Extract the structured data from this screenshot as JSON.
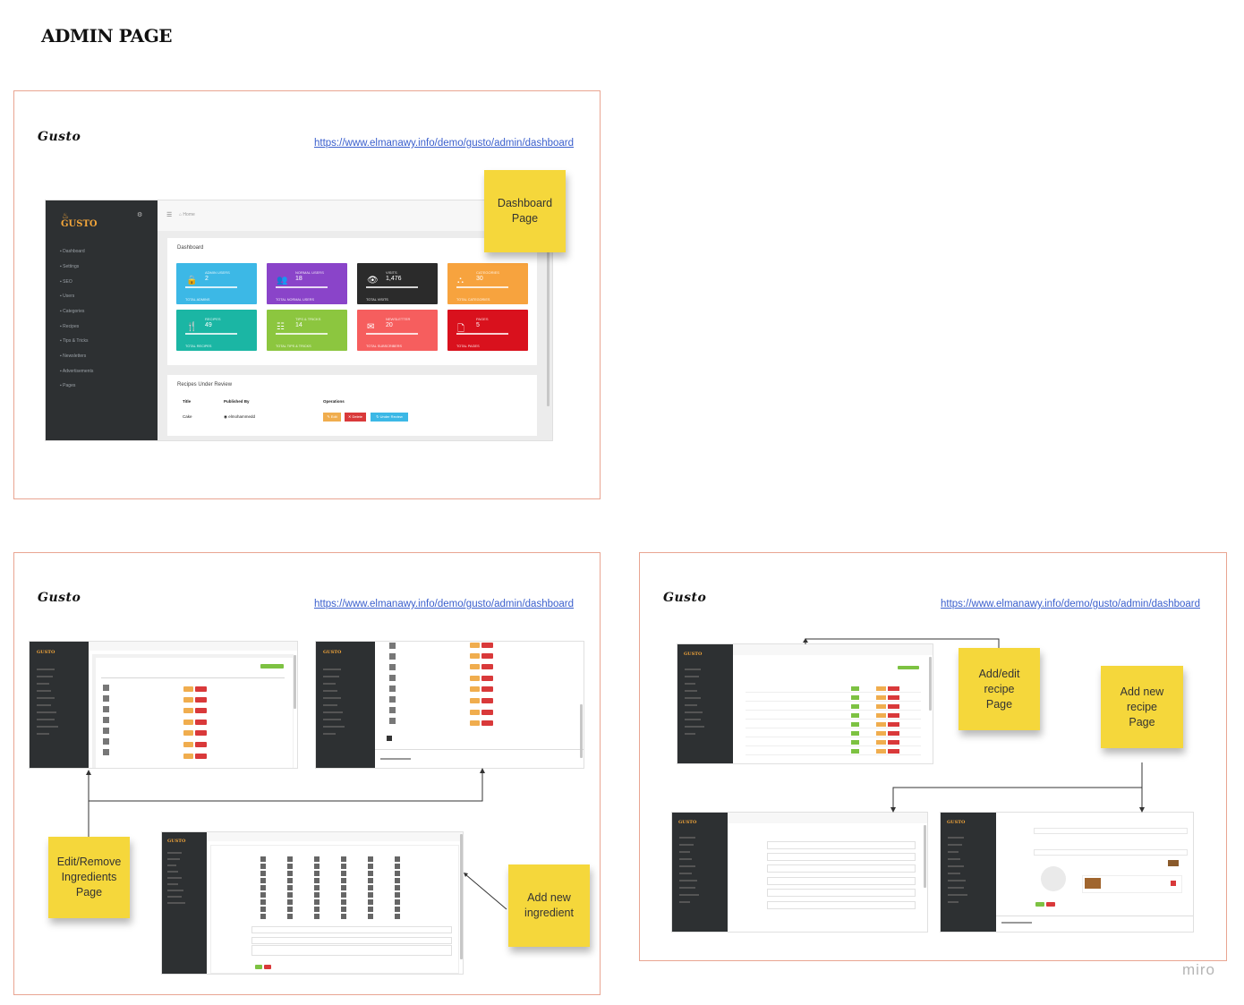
{
  "board": {
    "title": "ADMIN PAGE",
    "watermark": "miro"
  },
  "frames": [
    {
      "brand": "Gusto",
      "url": "https://www.elmanawy.info/demo/gusto/admin/dashboard"
    },
    {
      "brand": "Gusto",
      "url": "https://www.elmanawy.info/demo/gusto/admin/dashboard"
    },
    {
      "brand": "Gusto",
      "url": "https://www.elmanawy.info/demo/gusto/admin/dashboard"
    }
  ],
  "stickies": {
    "dashboard": "Dashboard\nPage",
    "edit_ingredients": "Edit/Remove\nIngredients\nPage",
    "add_ingredient": "Add new\ningredient",
    "add_edit_recipe": "Add/edit\nrecipe\nPage",
    "add_new_recipe": "Add new\nrecipe\nPage"
  },
  "dashboard": {
    "logo": "GUSTO",
    "breadcrumb": "Home",
    "panel_title": "Dashboard",
    "menu": [
      "Dashboard",
      "Settings",
      "SEO",
      "Users",
      "Categories",
      "Recipes",
      "Tips & Tricks",
      "Newsletters",
      "Advertisements",
      "Pages"
    ],
    "cards": [
      {
        "label": "ADMIN USERS",
        "value": "2",
        "foot": "TOTAL ADMINS",
        "color": "#3cb8e6",
        "icon": "lock-icon"
      },
      {
        "label": "NORMAL USERS",
        "value": "18",
        "foot": "TOTAL NORMAL USERS",
        "color": "#8a44c9",
        "icon": "users-icon"
      },
      {
        "label": "VISITS",
        "value": "1,476",
        "foot": "TOTAL VISITS",
        "color": "#2b2b2b",
        "icon": "eye-icon"
      },
      {
        "label": "CATEGORIES",
        "value": "30",
        "foot": "TOTAL CATEGORIES",
        "color": "#f7a33e",
        "icon": "sitemap-icon"
      },
      {
        "label": "RECIPES",
        "value": "49",
        "foot": "TOTAL RECIPES",
        "color": "#1bb6a4",
        "icon": "cutlery-icon"
      },
      {
        "label": "TIPS & TRICKS",
        "value": "14",
        "foot": "TOTAL TIPS & TRICKS",
        "color": "#8cc63f",
        "icon": "list-icon"
      },
      {
        "label": "NEWSLETTER",
        "value": "20",
        "foot": "TOTAL SUBSCRIBERS",
        "color": "#f65e5e",
        "icon": "envelope-icon"
      },
      {
        "label": "PAGES",
        "value": "5",
        "foot": "TOTAL PAGES",
        "color": "#d9111d",
        "icon": "file-icon"
      }
    ],
    "review": {
      "title": "Recipes Under Review",
      "columns": [
        "Title",
        "Published By",
        "Operations"
      ],
      "row": {
        "title": "Cake",
        "author": "elmohammedd"
      },
      "buttons": {
        "edit": "Edit",
        "delete": "Delete",
        "under_review": "Under Review"
      }
    }
  }
}
